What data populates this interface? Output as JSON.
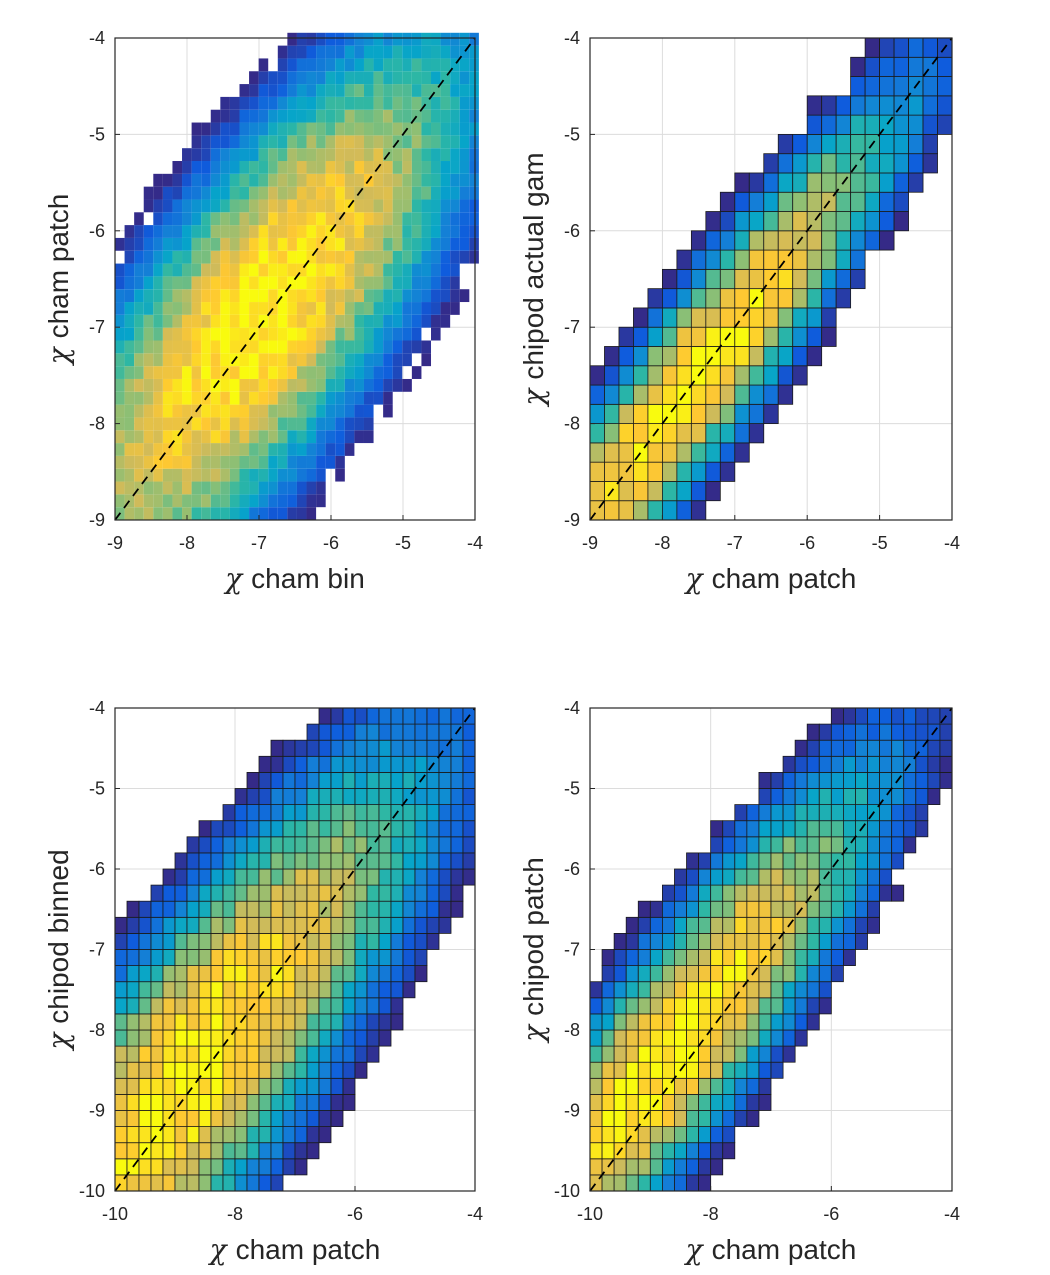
{
  "colors": {
    "frame": "#262626",
    "grid": "#dcdcdc",
    "cell_edge": "#1a1a1a",
    "identity_line": "#000000",
    "colormap": [
      "#352a87",
      "#0f5cdd",
      "#1481d6",
      "#06a4ca",
      "#2eb7a4",
      "#87bf77",
      "#d1bb59",
      "#fec832",
      "#f9fb0e"
    ]
  },
  "chart_data": [
    {
      "type": "heatmap",
      "id": "top-left",
      "xlabel": "cham bin",
      "ylabel": "cham patch",
      "label_symbol": "χ",
      "xlim": [
        -9,
        -4
      ],
      "ylim": [
        -9,
        -4
      ],
      "xticks": [
        "-9",
        "-8",
        "-7",
        "-6",
        "-5",
        "-4"
      ],
      "yticks": [
        "-4",
        "-5",
        "-6",
        "-7",
        "-8",
        "-9"
      ],
      "grid": true,
      "identity_line": true,
      "cell_edges": false,
      "bin_width": 0.133,
      "density_center_x": -7.0,
      "density_center_y": -6.9,
      "spread_along_diagonal": 1.3,
      "spread_across_diagonal": 0.46,
      "coverage": 0.93
    },
    {
      "type": "heatmap",
      "id": "top-right",
      "xlabel": "cham patch",
      "ylabel": "chipod actual gam",
      "label_symbol": "χ",
      "xlim": [
        -9,
        -4
      ],
      "ylim": [
        -9,
        -4
      ],
      "xticks": [
        "-9",
        "-8",
        "-7",
        "-6",
        "-5",
        "-4"
      ],
      "yticks": [
        "-4",
        "-5",
        "-6",
        "-7",
        "-8",
        "-9"
      ],
      "grid": true,
      "identity_line": true,
      "cell_edges": true,
      "bin_width": 0.2,
      "density_center_x": -7.6,
      "density_center_y": -7.6,
      "spread_along_diagonal": 1.35,
      "spread_across_diagonal": 0.24,
      "coverage": 0.97
    },
    {
      "type": "heatmap",
      "id": "bottom-left",
      "xlabel": "cham patch",
      "ylabel": "chipod binned",
      "label_symbol": "χ",
      "xlim": [
        -10,
        -4
      ],
      "ylim": [
        -10,
        -4
      ],
      "xticks": [
        "-10",
        "-8",
        "-6",
        "-4"
      ],
      "yticks": [
        "-4",
        "-5",
        "-6",
        "-7",
        "-8",
        "-9",
        "-10"
      ],
      "grid": true,
      "identity_line": true,
      "cell_edges": true,
      "bin_width": 0.2,
      "density_center_x": -8.8,
      "density_center_y": -8.6,
      "spread_along_diagonal": 1.8,
      "spread_across_diagonal": 0.5,
      "coverage": 0.95
    },
    {
      "type": "heatmap",
      "id": "bottom-right",
      "xlabel": "cham patch",
      "ylabel": "chipod patch",
      "label_symbol": "χ",
      "xlim": [
        -10,
        -4
      ],
      "ylim": [
        -10,
        -4
      ],
      "xticks": [
        "-10",
        "-8",
        "-6",
        "-4"
      ],
      "yticks": [
        "-4",
        "-5",
        "-6",
        "-7",
        "-8",
        "-9",
        "-10"
      ],
      "grid": true,
      "identity_line": true,
      "cell_edges": true,
      "bin_width": 0.2,
      "density_center_x": -8.7,
      "density_center_y": -8.3,
      "spread_along_diagonal": 1.6,
      "spread_across_diagonal": 0.36,
      "coverage": 0.96
    }
  ]
}
